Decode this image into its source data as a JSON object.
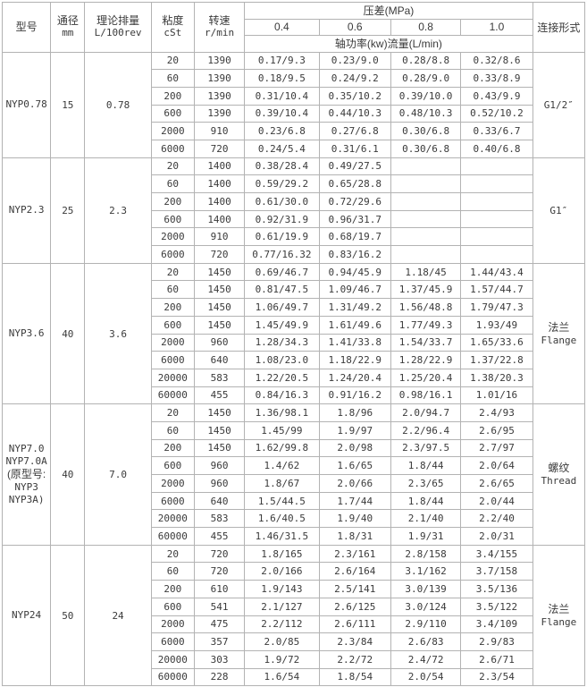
{
  "page": {
    "background": "#fdfdfd"
  },
  "colors": {
    "border": "#b3b3b3",
    "text": "#3a3a3a",
    "cell_background": "#ffffff"
  },
  "table": {
    "header": {
      "model": "型号",
      "diameter_l1": "通径",
      "diameter_l2": "mm",
      "displacement_l1": "理论排量",
      "displacement_l2": "L/100rev",
      "viscosity_l1": "粘度",
      "viscosity_l2": "cSt",
      "speed_l1": "转速",
      "speed_l2": "r/min",
      "pressure_group": "压差(MPa)",
      "pressure_cols": [
        "0.4",
        "0.6",
        "0.8",
        "1.0"
      ],
      "pressure_sub": "轴功率(kw)流量(L/min)",
      "connection": "连接形式"
    },
    "sections": [
      {
        "model_lines": [
          "NYP0.78"
        ],
        "diameter": "15",
        "displacement": "0.78",
        "connection_lines": [
          "G1/2″"
        ],
        "connection_cjk": false,
        "rows": [
          {
            "viscosity": "20",
            "speed": "1390",
            "values": [
              "0.17/9.3",
              "0.23/9.0",
              "0.28/8.8",
              "0.32/8.6"
            ]
          },
          {
            "viscosity": "60",
            "speed": "1390",
            "values": [
              "0.18/9.5",
              "0.24/9.2",
              "0.28/9.0",
              "0.33/8.9"
            ]
          },
          {
            "viscosity": "200",
            "speed": "1390",
            "values": [
              "0.31/10.4",
              "0.35/10.2",
              "0.39/10.0",
              "0.43/9.9"
            ]
          },
          {
            "viscosity": "600",
            "speed": "1390",
            "values": [
              "0.39/10.4",
              "0.44/10.3",
              "0.48/10.3",
              "0.52/10.2"
            ]
          },
          {
            "viscosity": "2000",
            "speed": "910",
            "values": [
              "0.23/6.8",
              "0.27/6.8",
              "0.30/6.8",
              "0.33/6.7"
            ]
          },
          {
            "viscosity": "6000",
            "speed": "720",
            "values": [
              "0.24/5.4",
              "0.31/6.1",
              "0.30/6.8",
              "0.40/6.8"
            ]
          }
        ]
      },
      {
        "model_lines": [
          "NYP2.3"
        ],
        "diameter": "25",
        "displacement": "2.3",
        "connection_lines": [
          "G1″"
        ],
        "connection_cjk": false,
        "rows": [
          {
            "viscosity": "20",
            "speed": "1400",
            "values": [
              "0.38/28.4",
              "0.49/27.5",
              "",
              ""
            ]
          },
          {
            "viscosity": "60",
            "speed": "1400",
            "values": [
              "0.59/29.2",
              "0.65/28.8",
              "",
              ""
            ]
          },
          {
            "viscosity": "200",
            "speed": "1400",
            "values": [
              "0.61/30.0",
              "0.72/29.6",
              "",
              ""
            ]
          },
          {
            "viscosity": "600",
            "speed": "1400",
            "values": [
              "0.92/31.9",
              "0.96/31.7",
              "",
              ""
            ]
          },
          {
            "viscosity": "2000",
            "speed": "910",
            "values": [
              "0.61/19.9",
              "0.68/19.7",
              "",
              ""
            ]
          },
          {
            "viscosity": "6000",
            "speed": "720",
            "values": [
              "0.77/16.32",
              "0.83/16.2",
              "",
              ""
            ]
          }
        ]
      },
      {
        "model_lines": [
          "NYP3.6"
        ],
        "diameter": "40",
        "displacement": "3.6",
        "connection_lines": [
          "法兰",
          "Flange"
        ],
        "connection_cjk": true,
        "rows": [
          {
            "viscosity": "20",
            "speed": "1450",
            "values": [
              "0.69/46.7",
              "0.94/45.9",
              "1.18/45",
              "1.44/43.4"
            ]
          },
          {
            "viscosity": "60",
            "speed": "1450",
            "values": [
              "0.81/47.5",
              "1.09/46.7",
              "1.37/45.9",
              "1.57/44.7"
            ]
          },
          {
            "viscosity": "200",
            "speed": "1450",
            "values": [
              "1.06/49.7",
              "1.31/49.2",
              "1.56/48.8",
              "1.79/47.3"
            ]
          },
          {
            "viscosity": "600",
            "speed": "1450",
            "values": [
              "1.45/49.9",
              "1.61/49.6",
              "1.77/49.3",
              "1.93/49"
            ]
          },
          {
            "viscosity": "2000",
            "speed": "960",
            "values": [
              "1.28/34.3",
              "1.41/33.8",
              "1.54/33.7",
              "1.65/33.6"
            ]
          },
          {
            "viscosity": "6000",
            "speed": "640",
            "values": [
              "1.08/23.0",
              "1.18/22.9",
              "1.28/22.9",
              "1.37/22.8"
            ]
          },
          {
            "viscosity": "20000",
            "speed": "583",
            "values": [
              "1.22/20.5",
              "1.24/20.4",
              "1.25/20.4",
              "1.38/20.3"
            ]
          },
          {
            "viscosity": "60000",
            "speed": "455",
            "values": [
              "0.84/16.3",
              "0.91/16.2",
              "0.98/16.1",
              "1.01/16"
            ]
          }
        ]
      },
      {
        "model_lines": [
          "NYP7.0",
          "NYP7.0A",
          "(原型号:",
          "NYP3",
          "NYP3A)"
        ],
        "diameter": "40",
        "displacement": "7.0",
        "connection_lines": [
          "螺纹",
          "Thread"
        ],
        "connection_cjk": true,
        "rows": [
          {
            "viscosity": "20",
            "speed": "1450",
            "values": [
              "1.36/98.1",
              "1.8/96",
              "2.0/94.7",
              "2.4/93"
            ]
          },
          {
            "viscosity": "60",
            "speed": "1450",
            "values": [
              "1.45/99",
              "1.9/97",
              "2.2/96.4",
              "2.6/95"
            ]
          },
          {
            "viscosity": "200",
            "speed": "1450",
            "values": [
              "1.62/99.8",
              "2.0/98",
              "2.3/97.5",
              "2.7/97"
            ]
          },
          {
            "viscosity": "600",
            "speed": "960",
            "values": [
              "1.4/62",
              "1.6/65",
              "1.8/44",
              "2.0/64"
            ]
          },
          {
            "viscosity": "2000",
            "speed": "960",
            "values": [
              "1.8/67",
              "2.0/66",
              "2.3/65",
              "2.6/65"
            ]
          },
          {
            "viscosity": "6000",
            "speed": "640",
            "values": [
              "1.5/44.5",
              "1.7/44",
              "1.8/44",
              "2.0/44"
            ]
          },
          {
            "viscosity": "20000",
            "speed": "583",
            "values": [
              "1.6/40.5",
              "1.9/40",
              "2.1/40",
              "2.2/40"
            ]
          },
          {
            "viscosity": "60000",
            "speed": "455",
            "values": [
              "1.46/31.5",
              "1.8/31",
              "1.9/31",
              "2.0/31"
            ]
          }
        ]
      },
      {
        "model_lines": [
          "NYP24"
        ],
        "diameter": "50",
        "displacement": "24",
        "connection_lines": [
          "法兰",
          "Flange"
        ],
        "connection_cjk": true,
        "rows": [
          {
            "viscosity": "20",
            "speed": "720",
            "values": [
              "1.8/165",
              "2.3/161",
              "2.8/158",
              "3.4/155"
            ]
          },
          {
            "viscosity": "60",
            "speed": "720",
            "values": [
              "2.0/166",
              "2.6/164",
              "3.1/162",
              "3.7/158"
            ]
          },
          {
            "viscosity": "200",
            "speed": "610",
            "values": [
              "1.9/143",
              "2.5/141",
              "3.0/139",
              "3.5/136"
            ]
          },
          {
            "viscosity": "600",
            "speed": "541",
            "values": [
              "2.1/127",
              "2.6/125",
              "3.0/124",
              "3.5/122"
            ]
          },
          {
            "viscosity": "2000",
            "speed": "475",
            "values": [
              "2.2/112",
              "2.6/111",
              "2.9/110",
              "3.4/109"
            ]
          },
          {
            "viscosity": "6000",
            "speed": "357",
            "values": [
              "2.0/85",
              "2.3/84",
              "2.6/83",
              "2.9/83"
            ]
          },
          {
            "viscosity": "20000",
            "speed": "303",
            "values": [
              "1.9/72",
              "2.2/72",
              "2.4/72",
              "2.6/71"
            ]
          },
          {
            "viscosity": "60000",
            "speed": "228",
            "values": [
              "1.6/54",
              "1.8/54",
              "2.0/54",
              "2.3/54"
            ]
          }
        ]
      }
    ]
  }
}
